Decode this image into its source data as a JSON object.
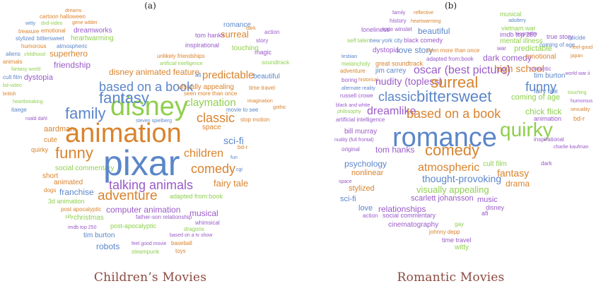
{
  "colors": {
    "blue": "#5b86c9",
    "green": "#8fcf4e",
    "orange": "#d9832e",
    "purple": "#9a5bc9",
    "red": "#d9443a",
    "lightblue": "#78a8de",
    "yellowgreen": "#b7c93a"
  },
  "panels": [
    {
      "label": "(a)",
      "caption": "Children’s Movies",
      "words": [
        {
          "text": "dreams",
          "color": "orange"
        },
        {
          "text": "cartoon halloween",
          "color": "orange"
        },
        {
          "text": "witty",
          "color": "blue"
        },
        {
          "text": "dvd-video",
          "color": "green"
        },
        {
          "text": "gene wilder",
          "color": "orange"
        },
        {
          "text": "treasure",
          "color": "orange"
        },
        {
          "text": "emotional",
          "color": "orange"
        },
        {
          "text": "dreamworks",
          "color": "purple"
        },
        {
          "text": "stylized",
          "color": "blue"
        },
        {
          "text": "bittersweet",
          "color": "blue"
        },
        {
          "text": "heartwarming",
          "color": "green"
        },
        {
          "text": "humorous",
          "color": "orange"
        },
        {
          "text": "atmospheric",
          "color": "blue"
        },
        {
          "text": "aliens",
          "color": "blue"
        },
        {
          "text": "childhood",
          "color": "green"
        },
        {
          "text": "superhero",
          "color": "orange"
        },
        {
          "text": "friendship",
          "color": "purple"
        },
        {
          "text": "animals",
          "color": "orange"
        },
        {
          "text": "fantasy world",
          "color": "green"
        },
        {
          "text": "cult film",
          "color": "blue"
        },
        {
          "text": "dystopia",
          "color": "purple"
        },
        {
          "text": "bd-video",
          "color": "green"
        },
        {
          "text": "british",
          "color": "orange"
        },
        {
          "text": "heartbreaking",
          "color": "green"
        },
        {
          "text": "itaege",
          "color": "blue"
        },
        {
          "text": "roald dahl",
          "color": "purple"
        },
        {
          "text": "aardman",
          "color": "orange"
        },
        {
          "text": "cute",
          "color": "orange"
        },
        {
          "text": "quirky",
          "color": "orange"
        },
        {
          "text": "funny",
          "color": "orange"
        },
        {
          "text": "social commentary",
          "color": "green"
        },
        {
          "text": "short",
          "color": "orange"
        },
        {
          "text": "animated",
          "color": "orange"
        },
        {
          "text": "dogs",
          "color": "orange"
        },
        {
          "text": "franchise",
          "color": "blue"
        },
        {
          "text": "3d animation",
          "color": "green"
        },
        {
          "text": "post apocalyptic",
          "color": "orange"
        },
        {
          "text": "silly",
          "color": "green"
        },
        {
          "text": "christmas",
          "color": "green"
        },
        {
          "text": "imdb top 250",
          "color": "purple"
        },
        {
          "text": "post-apocalyptic",
          "color": "green"
        },
        {
          "text": "tim burton",
          "color": "blue"
        },
        {
          "text": "robots",
          "color": "blue"
        },
        {
          "text": "feel good movie",
          "color": "purple"
        },
        {
          "text": "steampunk",
          "color": "green"
        },
        {
          "text": "based on a tv show",
          "color": "purple"
        },
        {
          "text": "baseball",
          "color": "orange"
        },
        {
          "text": "toys",
          "color": "orange"
        },
        {
          "text": "computer animation",
          "color": "purple"
        },
        {
          "text": "father-son relationship",
          "color": "purple"
        },
        {
          "text": "musical",
          "color": "purple"
        },
        {
          "text": "whimsical",
          "color": "purple"
        },
        {
          "text": "dragons",
          "color": "green"
        },
        {
          "text": "adapted from:book",
          "color": "green"
        },
        {
          "text": "adventure",
          "color": "orange"
        },
        {
          "text": "talking animals",
          "color": "purple"
        },
        {
          "text": "fairy tale",
          "color": "orange"
        },
        {
          "text": "comedy",
          "color": "orange"
        },
        {
          "text": "children",
          "color": "orange"
        },
        {
          "text": "pixar",
          "color": "blue"
        },
        {
          "text": "animation",
          "color": "orange"
        },
        {
          "text": "disney",
          "color": "green"
        },
        {
          "text": "family",
          "color": "blue"
        },
        {
          "text": "fantasy",
          "color": "blue"
        },
        {
          "text": "based on a book",
          "color": "blue"
        },
        {
          "text": "disney animated feature",
          "color": "orange"
        },
        {
          "text": "classic",
          "color": "orange"
        },
        {
          "text": "claymation",
          "color": "green"
        },
        {
          "text": "steven spielberg",
          "color": "blue"
        },
        {
          "text": "space",
          "color": "orange"
        },
        {
          "text": "sci-fi",
          "color": "blue"
        },
        {
          "text": "bd-r",
          "color": "orange"
        },
        {
          "text": "fun",
          "color": "blue"
        },
        {
          "text": "cgi",
          "color": "blue"
        },
        {
          "text": "movie to see",
          "color": "blue"
        },
        {
          "text": "stop motion",
          "color": "orange"
        },
        {
          "text": "imagination",
          "color": "orange"
        },
        {
          "text": "gothic",
          "color": "orange"
        },
        {
          "text": "visually appealing",
          "color": "orange"
        },
        {
          "text": "seen more than once",
          "color": "orange"
        },
        {
          "text": "time travel",
          "color": "orange"
        },
        {
          "text": "beautiful",
          "color": "blue"
        },
        {
          "text": "afi",
          "color": "blue"
        },
        {
          "text": "predictable",
          "color": "orange"
        },
        {
          "text": "soundtrack",
          "color": "green"
        },
        {
          "text": "artificial intelligence",
          "color": "green"
        },
        {
          "text": "unlikely friendships",
          "color": "orange"
        },
        {
          "text": "magic",
          "color": "purple"
        },
        {
          "text": "inspirational",
          "color": "purple"
        },
        {
          "text": "touching",
          "color": "green"
        },
        {
          "text": "tom hanks",
          "color": "purple"
        },
        {
          "text": "surreal",
          "color": "orange"
        },
        {
          "text": "story",
          "color": "purple"
        },
        {
          "text": "romance",
          "color": "blue"
        },
        {
          "text": "dark",
          "color": "orange"
        },
        {
          "text": "action",
          "color": "purple"
        }
      ]
    },
    {
      "label": "(b)",
      "caption": "Romantic Movies",
      "words": [
        {
          "text": "family",
          "color": "purple"
        },
        {
          "text": "reflective",
          "color": "orange"
        },
        {
          "text": "musical",
          "color": "green"
        },
        {
          "text": "history",
          "color": "purple"
        },
        {
          "text": "heartwarming",
          "color": "orange"
        },
        {
          "text": "adultery",
          "color": "blue"
        },
        {
          "text": "loneliness",
          "color": "purple"
        },
        {
          "text": "kate winslet",
          "color": "purple"
        },
        {
          "text": "beautiful",
          "color": "blue"
        },
        {
          "text": "vietnam war",
          "color": "green"
        },
        {
          "text": "biography",
          "color": "purple"
        },
        {
          "text": "imdb top 250",
          "color": "purple"
        },
        {
          "text": "self talent",
          "color": "green"
        },
        {
          "text": "new york city",
          "color": "blue"
        },
        {
          "text": "black comedy",
          "color": "purple"
        },
        {
          "text": "mental illness",
          "color": "green"
        },
        {
          "text": "true story",
          "color": "purple"
        },
        {
          "text": "suicide",
          "color": "blue"
        },
        {
          "text": "coming of age",
          "color": "blue"
        },
        {
          "text": "war",
          "color": "purple"
        },
        {
          "text": "predictable",
          "color": "green"
        },
        {
          "text": "feel-good",
          "color": "orange"
        },
        {
          "text": "dystopia",
          "color": "purple"
        },
        {
          "text": "love story",
          "color": "blue"
        },
        {
          "text": "seen more than once",
          "color": "orange"
        },
        {
          "text": "lesbian",
          "color": "blue"
        },
        {
          "text": "adapted from:book",
          "color": "purple"
        },
        {
          "text": "dark comedy",
          "color": "purple"
        },
        {
          "text": "emotional",
          "color": "orange"
        },
        {
          "text": "japan",
          "color": "orange"
        },
        {
          "text": "melancholy",
          "color": "green"
        },
        {
          "text": "great soundtrack",
          "color": "orange"
        },
        {
          "text": "high school",
          "color": "orange"
        },
        {
          "text": "romantic",
          "color": "purple"
        },
        {
          "text": "adventure",
          "color": "orange"
        },
        {
          "text": "jim carrey",
          "color": "blue"
        },
        {
          "text": "oscar (best picture)",
          "color": "purple"
        },
        {
          "text": "tim burton",
          "color": "blue"
        },
        {
          "text": "world war ii",
          "color": "purple"
        },
        {
          "text": "boring",
          "color": "purple"
        },
        {
          "text": "historical",
          "color": "orange"
        },
        {
          "text": "nudity (topless)",
          "color": "purple"
        },
        {
          "text": "alternate reality",
          "color": "blue"
        },
        {
          "text": "surreal",
          "color": "orange"
        },
        {
          "text": "funny",
          "color": "blue"
        },
        {
          "text": "fairy tale",
          "color": "blue"
        },
        {
          "text": "touching",
          "color": "green"
        },
        {
          "text": "russell crowe",
          "color": "purple"
        },
        {
          "text": "classic",
          "color": "blue"
        },
        {
          "text": "bittersweet",
          "color": "blue"
        },
        {
          "text": "coming of age",
          "color": "green"
        },
        {
          "text": "humorous",
          "color": "purple"
        },
        {
          "text": "black and white",
          "color": "purple"
        },
        {
          "text": "philosophy",
          "color": "green"
        },
        {
          "text": "dreamlike",
          "color": "purple"
        },
        {
          "text": "based on a book",
          "color": "orange"
        },
        {
          "text": "chick flick",
          "color": "green"
        },
        {
          "text": "sexuality",
          "color": "orange"
        },
        {
          "text": "artificial intelligence",
          "color": "purple"
        },
        {
          "text": "animation",
          "color": "purple"
        },
        {
          "text": "bd-r",
          "color": "orange"
        },
        {
          "text": "quirky",
          "color": "green"
        },
        {
          "text": "romance",
          "color": "blue"
        },
        {
          "text": "bill murray",
          "color": "purple"
        },
        {
          "text": "nudity (full frontal)",
          "color": "purple"
        },
        {
          "text": "inspirational",
          "color": "purple"
        },
        {
          "text": "charlie kaufman",
          "color": "purple"
        },
        {
          "text": "original",
          "color": "purple"
        },
        {
          "text": "tom hanks",
          "color": "purple"
        },
        {
          "text": "comedy",
          "color": "orange"
        },
        {
          "text": "psychology",
          "color": "blue"
        },
        {
          "text": "atmospheric",
          "color": "orange"
        },
        {
          "text": "cult film",
          "color": "green"
        },
        {
          "text": "dark",
          "color": "purple"
        },
        {
          "text": "fantasy",
          "color": "orange"
        },
        {
          "text": "nonlinear",
          "color": "orange"
        },
        {
          "text": "thought-provoking",
          "color": "blue"
        },
        {
          "text": "drama",
          "color": "orange"
        },
        {
          "text": "space",
          "color": "purple"
        },
        {
          "text": "stylized",
          "color": "orange"
        },
        {
          "text": "visually appealing",
          "color": "green"
        },
        {
          "text": "sci-fi",
          "color": "blue"
        },
        {
          "text": "scarlett johansson",
          "color": "purple"
        },
        {
          "text": "music",
          "color": "purple"
        },
        {
          "text": "love",
          "color": "blue"
        },
        {
          "text": "relationships",
          "color": "purple"
        },
        {
          "text": "disney",
          "color": "purple"
        },
        {
          "text": "action",
          "color": "purple"
        },
        {
          "text": "social commentary",
          "color": "purple"
        },
        {
          "text": "afi",
          "color": "purple"
        },
        {
          "text": "cinematography",
          "color": "purple"
        },
        {
          "text": "gay",
          "color": "green"
        },
        {
          "text": "johnny depp",
          "color": "orange"
        },
        {
          "text": "time travel",
          "color": "purple"
        },
        {
          "text": "witty",
          "color": "green"
        }
      ]
    }
  ]
}
